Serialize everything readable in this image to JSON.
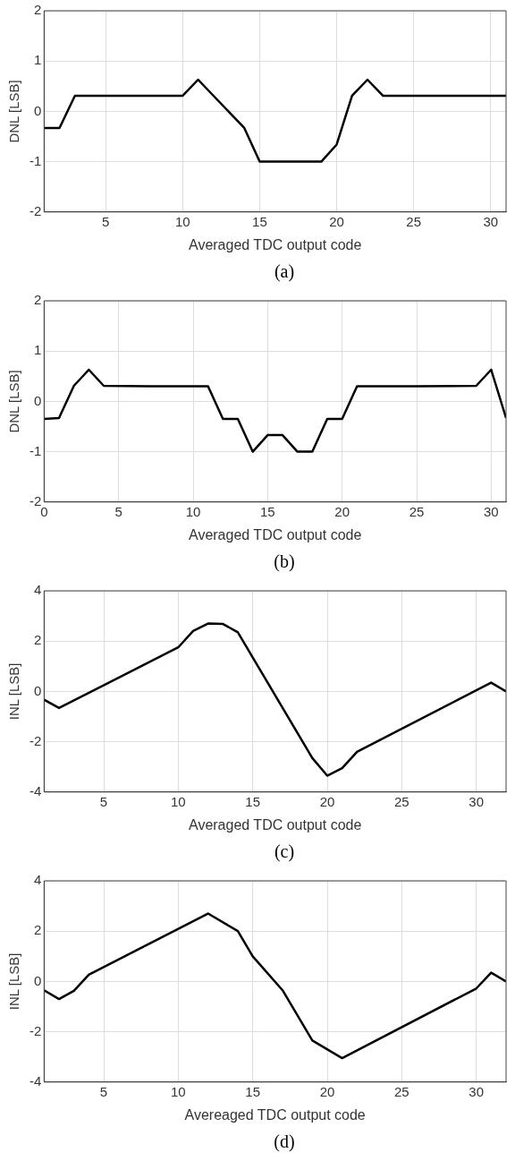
{
  "chart_data": [
    {
      "type": "line",
      "xlabel": "Averaged TDC output code",
      "ylabel": "DNL [LSB]",
      "annotations": [
        "(a)"
      ],
      "xlim": [
        1,
        31
      ],
      "xticks": [
        5,
        10,
        15,
        20,
        25,
        30
      ],
      "ylim": [
        -2,
        2
      ],
      "yticks": [
        -2,
        -1,
        0,
        1,
        2
      ],
      "grid": true,
      "legend": false,
      "marker": "none",
      "line_style": "solid",
      "series": [
        {
          "color": "#000000",
          "x": [
            1,
            2,
            3,
            10,
            11,
            14,
            15,
            19,
            20,
            21,
            22,
            23,
            31
          ],
          "values": [
            -0.33,
            -0.33,
            0.31,
            0.31,
            0.63,
            -0.33,
            -1,
            -1,
            -0.66,
            0.31,
            0.63,
            0.31,
            0.31
          ]
        }
      ]
    },
    {
      "type": "line",
      "xlabel": "Averaged TDC output code",
      "ylabel": "DNL [LSB]",
      "annotations": [
        "(b)"
      ],
      "xlim": [
        0,
        31
      ],
      "xticks": [
        0,
        5,
        10,
        15,
        20,
        25,
        30
      ],
      "ylim": [
        -2,
        2
      ],
      "yticks": [
        -2,
        -1,
        0,
        1,
        2
      ],
      "grid": true,
      "legend": false,
      "marker": "none",
      "line_style": "solid",
      "series": [
        {
          "color": "#000000",
          "x": [
            0,
            1,
            2,
            3,
            4,
            7,
            11,
            12,
            13,
            14,
            15,
            16,
            17,
            18,
            19,
            20,
            21,
            25,
            29,
            30,
            31
          ],
          "values": [
            -0.35,
            -0.33,
            0.31,
            0.63,
            0.31,
            0.3,
            0.3,
            -0.35,
            -0.35,
            -1,
            -0.67,
            -0.67,
            -1,
            -1,
            -0.35,
            -0.35,
            0.3,
            0.3,
            0.31,
            0.63,
            -0.33
          ]
        }
      ]
    },
    {
      "type": "line",
      "xlabel": "Averaged TDC output code",
      "ylabel": "INL [LSB]",
      "annotations": [
        "(c)"
      ],
      "xlim": [
        1,
        32
      ],
      "xticks": [
        5,
        10,
        15,
        20,
        25,
        30
      ],
      "ylim": [
        -4,
        4
      ],
      "yticks": [
        -4,
        -2,
        0,
        2,
        4
      ],
      "grid": true,
      "legend": false,
      "marker": "none",
      "line_style": "solid",
      "series": [
        {
          "color": "#000000",
          "x": [
            1,
            2,
            10,
            11,
            12,
            13,
            14,
            19,
            20,
            21,
            22,
            31,
            32
          ],
          "values": [
            -0.33,
            -0.66,
            1.75,
            2.4,
            2.7,
            2.68,
            2.35,
            -2.65,
            -3.35,
            -3.05,
            -2.4,
            0.35,
            0
          ]
        }
      ]
    },
    {
      "type": "line",
      "xlabel": "Avereaged TDC output code",
      "ylabel": "INL [LSB]",
      "annotations": [
        "(d)"
      ],
      "xlim": [
        1,
        32
      ],
      "xticks": [
        5,
        10,
        15,
        20,
        25,
        30
      ],
      "ylim": [
        -4,
        4
      ],
      "yticks": [
        -4,
        -2,
        0,
        2,
        4
      ],
      "grid": true,
      "legend": false,
      "marker": "none",
      "line_style": "solid",
      "series": [
        {
          "color": "#000000",
          "x": [
            1,
            2,
            3,
            4,
            12,
            14,
            15,
            17,
            19,
            21,
            30,
            31,
            32
          ],
          "values": [
            -0.35,
            -0.7,
            -0.37,
            0.27,
            2.7,
            2.0,
            1.0,
            -0.35,
            -2.35,
            -3.05,
            -0.28,
            0.35,
            0
          ]
        }
      ]
    }
  ]
}
